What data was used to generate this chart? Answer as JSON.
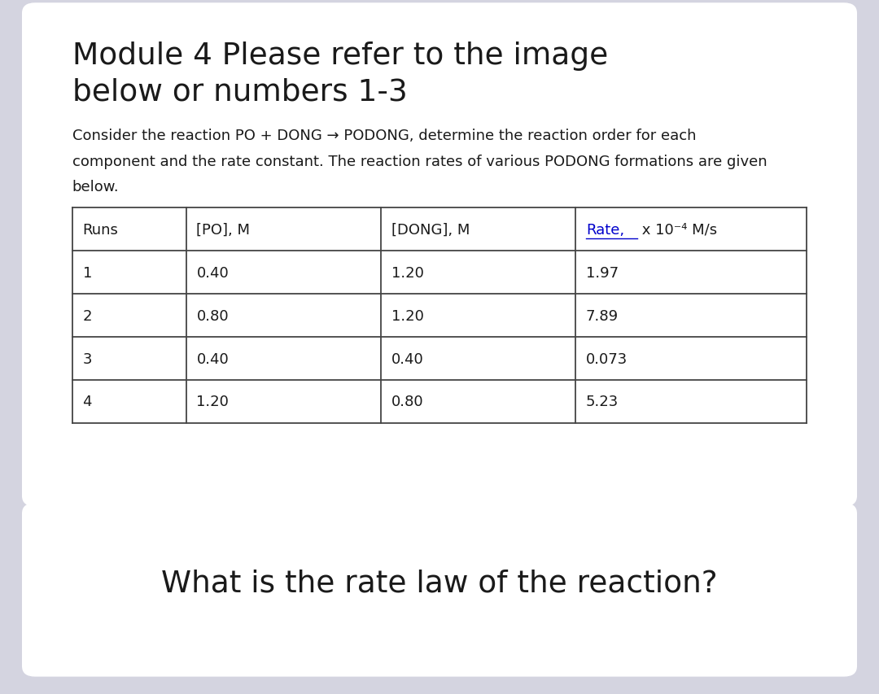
{
  "title_line1": "Module 4 Please refer to the image",
  "title_line2": "below or numbers 1-3",
  "para_line1": "Consider the reaction PO + DONG → PODONG, determine the reaction order for each",
  "para_line2": "component and the rate constant. The reaction rates of various PODONG formations are given",
  "para_line3": "below.",
  "table_headers": [
    "Runs",
    "[PO], M",
    "[DONG], M",
    ""
  ],
  "table_rows": [
    [
      "1",
      "0.40",
      "1.20",
      "1.97"
    ],
    [
      "2",
      "0.80",
      "1.20",
      "7.89"
    ],
    [
      "3",
      "0.40",
      "0.40",
      "0.073"
    ],
    [
      "4",
      "1.20",
      "0.80",
      "5.23"
    ]
  ],
  "rate_header_colored": "Rate,",
  "rate_header_rest": " x 10⁻⁴ M/s",
  "question": "What is the rate law of the reaction?",
  "bg_outer": "#d4d4e0",
  "bg_card_upper": "#ffffff",
  "bg_card_lower": "#ffffff",
  "text_color": "#1a1a1a",
  "table_border_color": "#444444",
  "title_fontsize": 27,
  "para_fontsize": 13,
  "table_fontsize": 13,
  "question_fontsize": 27,
  "header_rate_color": "#0000cc"
}
